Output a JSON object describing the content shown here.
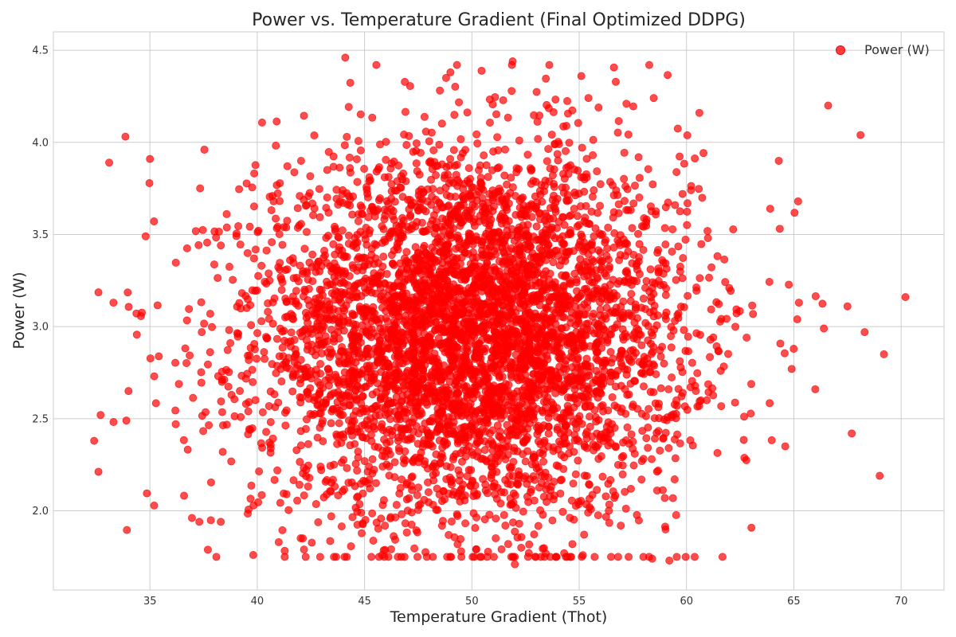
{
  "chart_data": {
    "type": "scatter",
    "title": "Power vs. Temperature Gradient (Final Optimized DDPG)",
    "xlabel": "Temperature Gradient (Thot)",
    "ylabel": "Power (W)",
    "xlim": [
      30.5,
      72.0
    ],
    "ylim": [
      1.57,
      4.6
    ],
    "xticks": [
      35,
      40,
      45,
      50,
      55,
      60,
      65,
      70
    ],
    "yticks": [
      2.0,
      2.5,
      3.0,
      3.5,
      4.0,
      4.5
    ],
    "xtick_labels": [
      "35",
      "40",
      "45",
      "50",
      "55",
      "60",
      "65",
      "70"
    ],
    "ytick_labels": [
      "2.0",
      "2.5",
      "3.0",
      "3.5",
      "4.0",
      "4.5"
    ],
    "grid": true,
    "legend_position": "top-right",
    "series": [
      {
        "name": "Power (W)",
        "color": "#ff0000",
        "opacity": 0.7,
        "outliers": {
          "x": [
            32.4,
            32.7,
            33.1,
            33.3,
            33.9,
            34.0,
            34.8,
            35.0,
            35.2,
            36.2,
            37.3,
            38.3,
            41.0,
            44.1,
            49.0,
            49.5,
            51.9,
            52.0,
            54.3,
            55.1,
            57.2,
            58.4,
            59.2,
            60.6,
            63.9,
            64.3,
            64.6,
            64.9,
            65.2,
            66.0,
            66.4,
            66.6,
            67.5,
            67.7,
            68.3,
            69.0,
            69.2,
            70.2
          ],
          "y": [
            2.38,
            2.52,
            3.89,
            3.13,
            2.49,
            2.65,
            3.49,
            3.91,
            2.73,
            2.47,
            1.94,
            1.94,
            1.83,
            4.46,
            4.38,
            1.78,
            4.44,
            1.71,
            1.77,
            4.36,
            4.21,
            1.74,
            1.73,
            4.16,
            3.64,
            3.9,
            2.35,
            2.77,
            3.68,
            2.66,
            2.99,
            4.2,
            3.11,
            2.42,
            2.97,
            2.19,
            2.85,
            3.16
          ]
        },
        "bulk": {
          "count": 5000,
          "x_center": 50.0,
          "x_std": 5.0,
          "y_center": 2.95,
          "y_std": 0.5
        }
      }
    ]
  }
}
